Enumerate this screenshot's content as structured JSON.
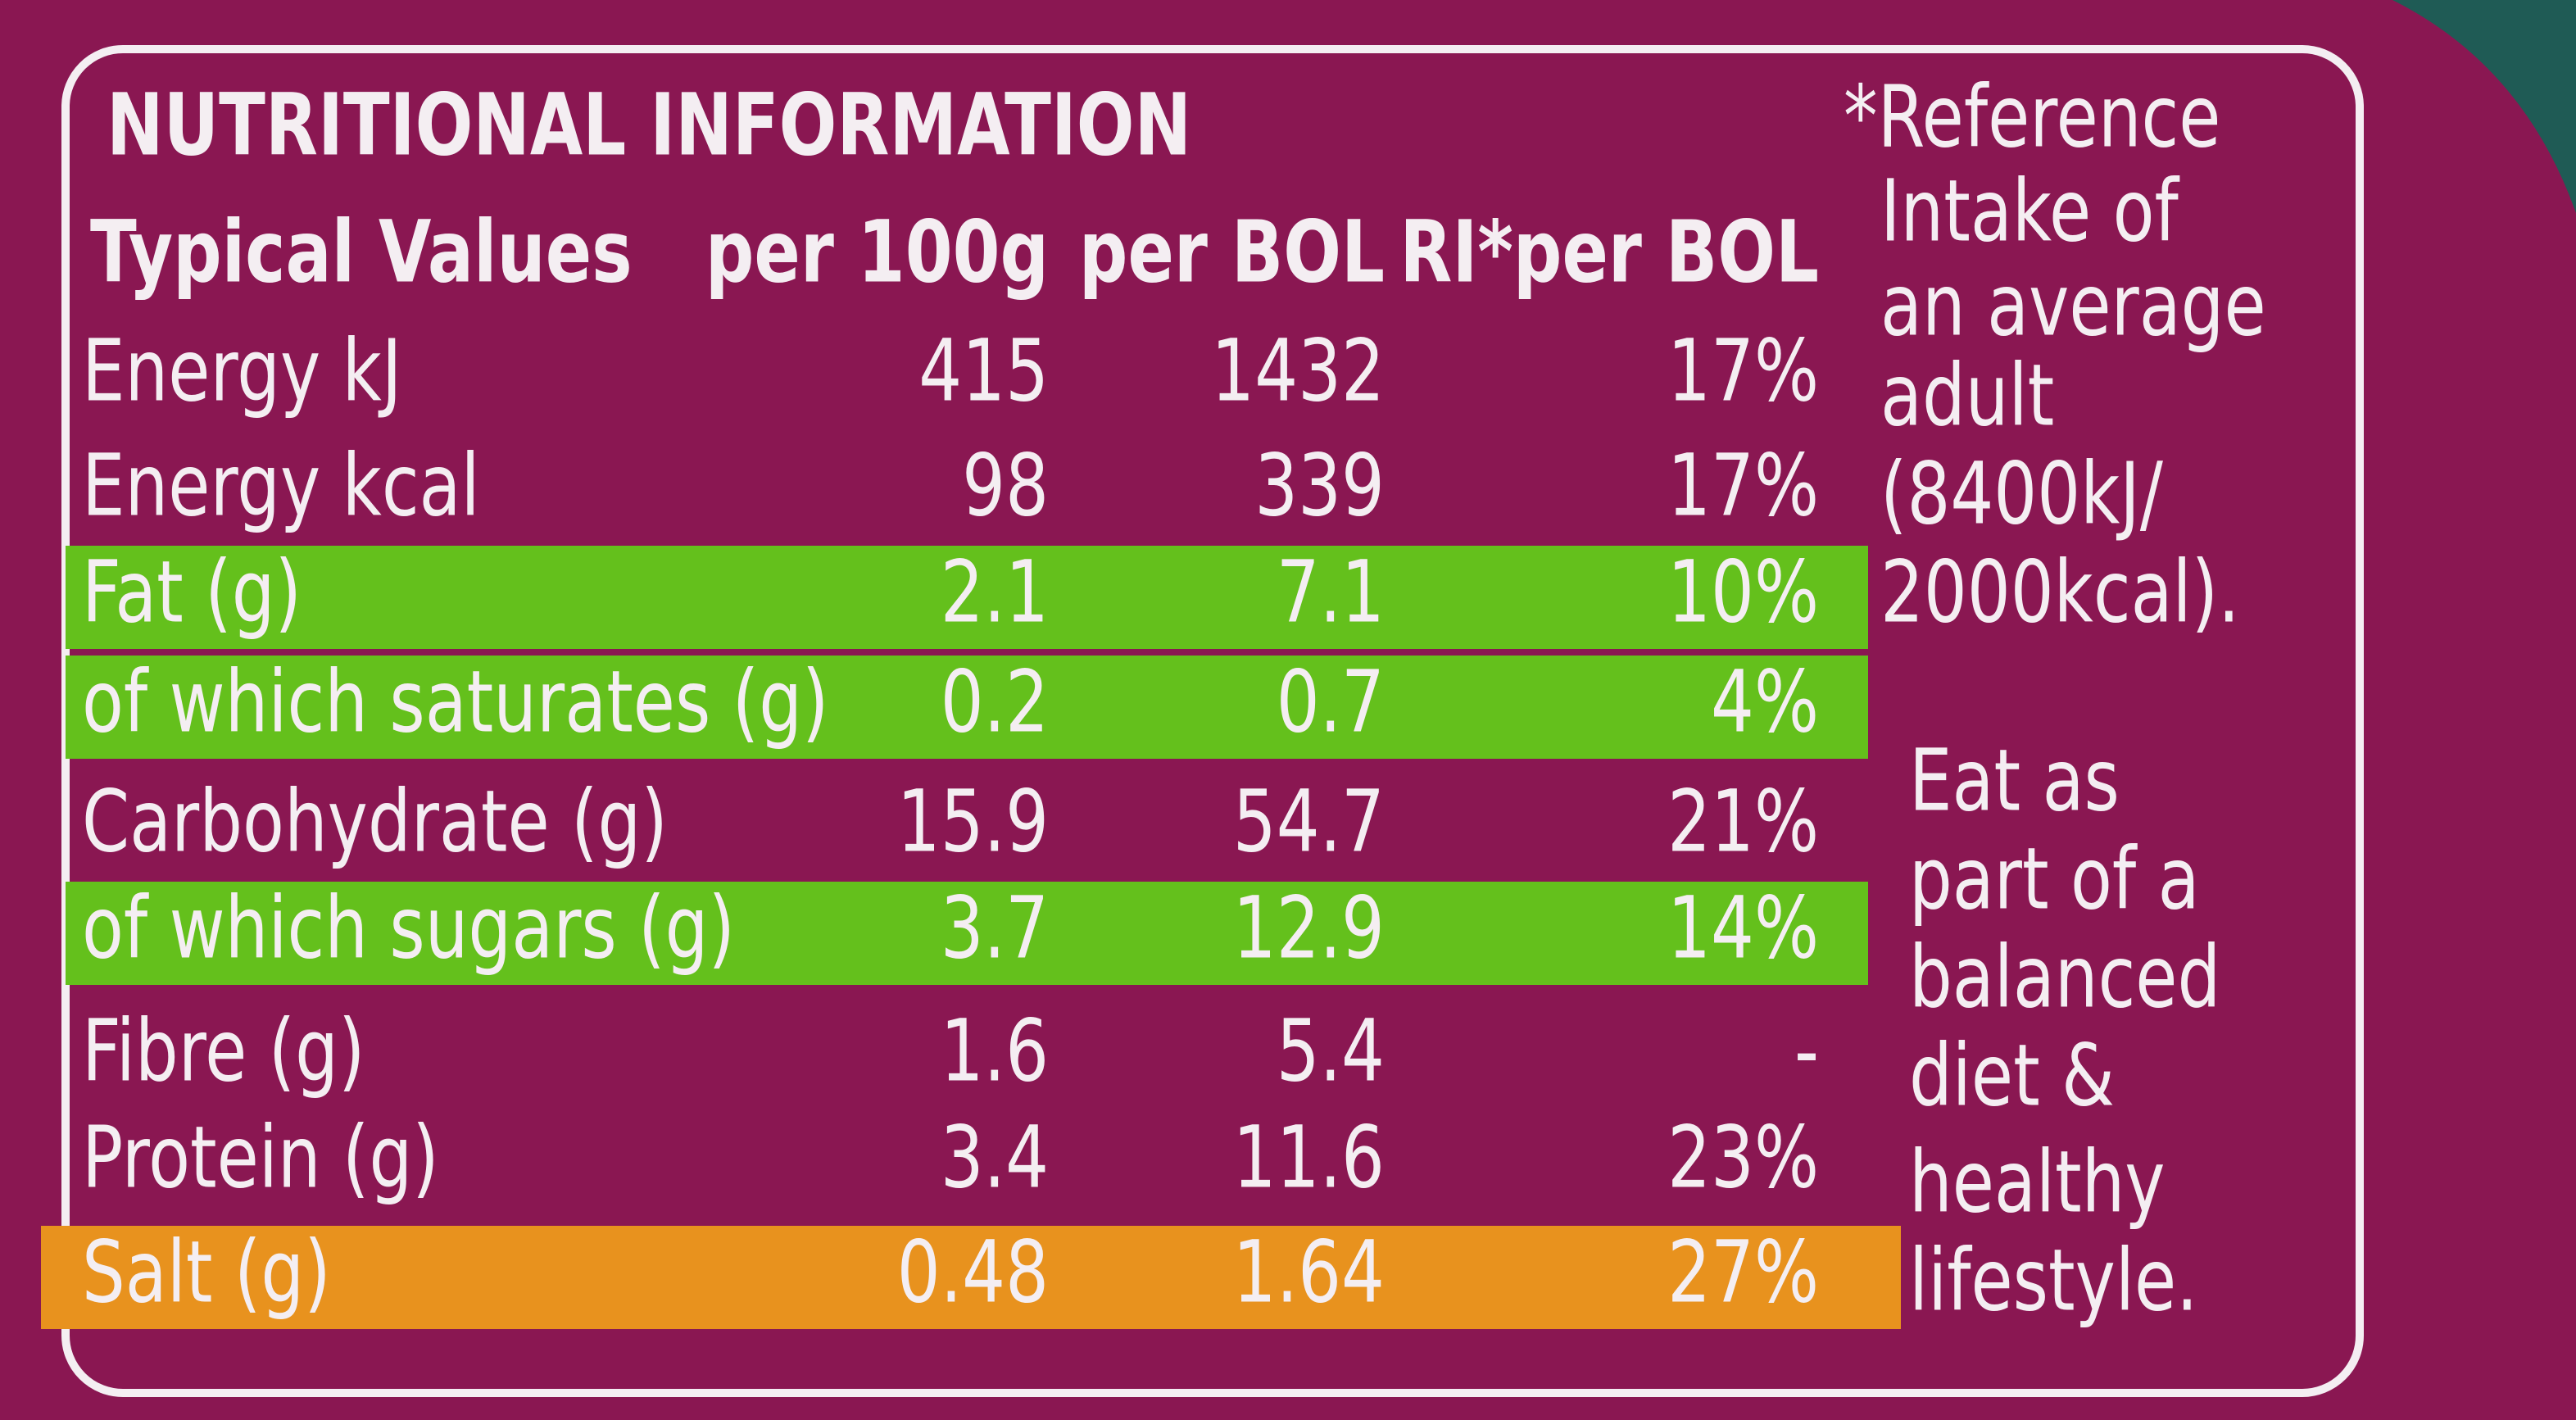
{
  "header": {
    "title": "NUTRITIONAL INFORMATION",
    "columns": [
      "Typical Values",
      "per 100g",
      "per BOL",
      "RI*per BOL"
    ]
  },
  "table": {
    "rows": [
      {
        "cells": [
          "Energy kJ",
          "415",
          "1432",
          "17%"
        ]
      },
      {
        "cells": [
          "Energy kcal",
          "98",
          "339",
          "17%"
        ]
      },
      {
        "cells": [
          "Fat (g)",
          "2.1",
          "7.1",
          "10%"
        ],
        "highlight": "#64c01c"
      },
      {
        "cells": [
          "of which saturates (g)",
          "0.2",
          "0.7",
          "4%"
        ],
        "highlight": "#64c01c"
      },
      {
        "cells": [
          "Carbohydrate (g)",
          "15.9",
          "54.7",
          "21%"
        ]
      },
      {
        "cells": [
          "of which sugars (g)",
          "3.7",
          "12.9",
          "14%"
        ],
        "highlight": "#64c01c"
      },
      {
        "cells": [
          "Fibre (g)",
          "1.6",
          "5.4",
          "-"
        ]
      },
      {
        "cells": [
          "Protein (g)",
          "3.4",
          "11.6",
          "23%"
        ]
      },
      {
        "cells": [
          "Salt (g)",
          "0.48",
          "1.64",
          "27%"
        ],
        "highlight": "#e8921e"
      }
    ]
  },
  "notes": {
    "reference": [
      "*Reference",
      "Intake of",
      "an average",
      "adult",
      "(8400kJ/",
      "2000kcal)."
    ],
    "advice": [
      "Eat as",
      "part of a",
      "balanced",
      "diet &",
      "healthy",
      "lifestyle."
    ]
  }
}
